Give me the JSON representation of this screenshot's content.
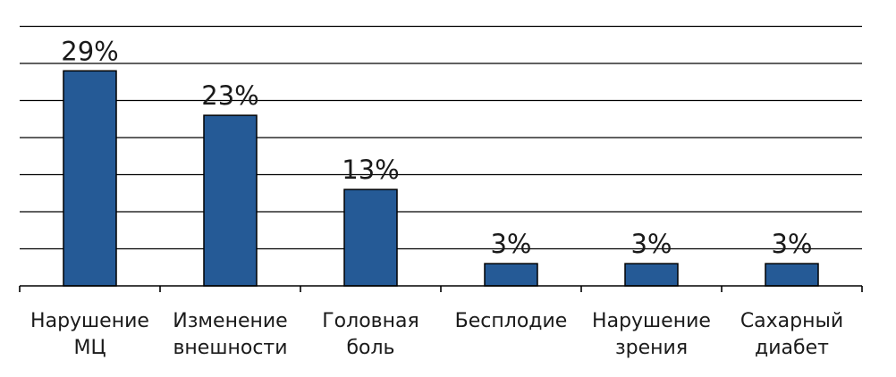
{
  "chart_data": {
    "type": "bar",
    "categories": [
      [
        "Нарушение",
        "МЦ"
      ],
      [
        "Изменение",
        "внешности"
      ],
      [
        "Головная",
        "боль"
      ],
      [
        "Бесплодие"
      ],
      [
        "Нарушение",
        "зрения"
      ],
      [
        "Сахарный",
        "диабет"
      ]
    ],
    "values": [
      29,
      23,
      13,
      3,
      3,
      3
    ],
    "data_labels": [
      "29%",
      "23%",
      "13%",
      "3%",
      "3%",
      "3%"
    ],
    "title": "",
    "xlabel": "",
    "ylabel": "",
    "ylim": [
      0,
      36
    ],
    "y_gridline_step": 5,
    "grid": true,
    "legend": "none",
    "colors": {
      "bar_fill": "#255a96",
      "bar_stroke": "#000000",
      "grid": "#000000",
      "text": "#1a1a1a"
    }
  }
}
